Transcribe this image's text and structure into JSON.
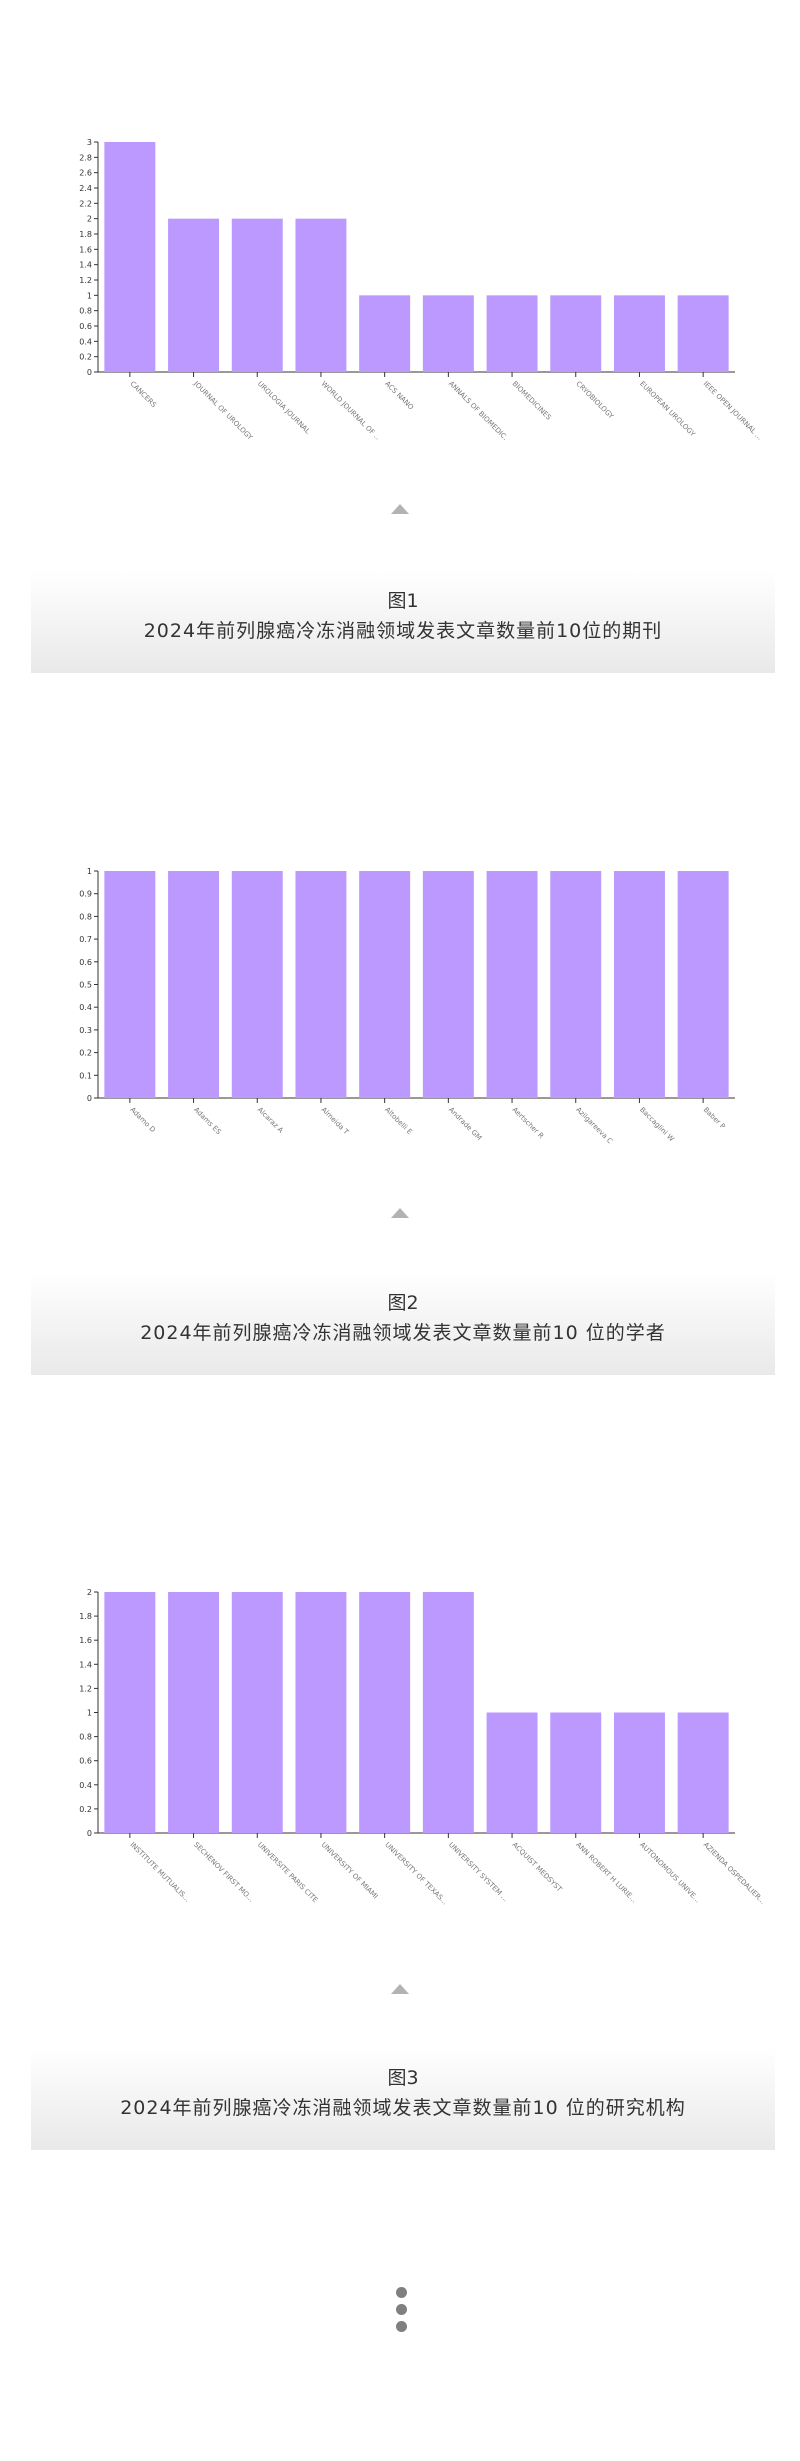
{
  "colors": {
    "bar": "#bb99ff",
    "axis": "#333333",
    "arrow": "#b3b3b3"
  },
  "figures": [
    {
      "num": "图1",
      "title": "2024年前列腺癌冷冻消融领域发表文章数量前10位的期刊"
    },
    {
      "num": "图2",
      "title": "2024年前列腺癌冷冻消融领域发表文章数量前10 位的学者"
    },
    {
      "num": "图3",
      "title": "2024年前列腺癌冷冻消融领域发表文章数量前10 位的研究机构"
    }
  ],
  "chart_data": [
    {
      "type": "bar",
      "categories": [
        "CANCERS",
        "JOURNAL OF UROLOGY",
        "UROLOGIA JOURNAL",
        "WORLD JOURNAL OF ...",
        "ACS NANO",
        "ANNALS OF BIOMEDIC...",
        "BIOMEDICINES",
        "CRYOBIOLOGY",
        "EUROPEAN UROLOGY",
        "IEEE OPEN JOURNAL ..."
      ],
      "values": [
        3,
        2,
        2,
        2,
        1,
        1,
        1,
        1,
        1,
        1
      ],
      "ylim": [
        0,
        3
      ],
      "ystep": 0.2,
      "yticks": [
        "0",
        "0.2",
        "0.4",
        "0.6",
        "0.8",
        "1",
        "1.2",
        "1.4",
        "1.6",
        "1.8",
        "2",
        "2.2",
        "2.4",
        "2.6",
        "2.8",
        "3"
      ],
      "grid": false
    },
    {
      "type": "bar",
      "categories": [
        "Adamo D",
        "Adams ES",
        "Alcaraz A",
        "Almeida T",
        "Altobelli E",
        "Andrade GM",
        "Aertscher R",
        "Azilgareeva C",
        "Baccaglini W",
        "Baber P"
      ],
      "values": [
        1,
        1,
        1,
        1,
        1,
        1,
        1,
        1,
        1,
        1
      ],
      "ylim": [
        0,
        1
      ],
      "ystep": 0.1,
      "yticks": [
        "0",
        "0.1",
        "0.2",
        "0.3",
        "0.4",
        "0.5",
        "0.6",
        "0.7",
        "0.8",
        "0.9",
        "1"
      ],
      "grid": false
    },
    {
      "type": "bar",
      "categories": [
        "INSTITUTE MUTUALIS...",
        "SECHENOV FIRST MO...",
        "UNIVERSITE PARIS CITE",
        "UNIVERSITY OF MIAMI",
        "UNIVERSITY OF TEXAS...",
        "UNIVERSITY SYSTEM ...",
        "ACQUIST MEDSYST",
        "ANN ROBERT H LURIE...",
        "AUTONOMOUS UNIVE...",
        "AZIENDA OSPEDALIER..."
      ],
      "values": [
        2,
        2,
        2,
        2,
        2,
        2,
        1,
        1,
        1,
        1
      ],
      "ylim": [
        0,
        2
      ],
      "ystep": 0.2,
      "yticks": [
        "0",
        "0.2",
        "0.4",
        "0.6",
        "0.8",
        "1",
        "1.2",
        "1.4",
        "1.6",
        "1.8",
        "2"
      ],
      "grid": false
    }
  ]
}
